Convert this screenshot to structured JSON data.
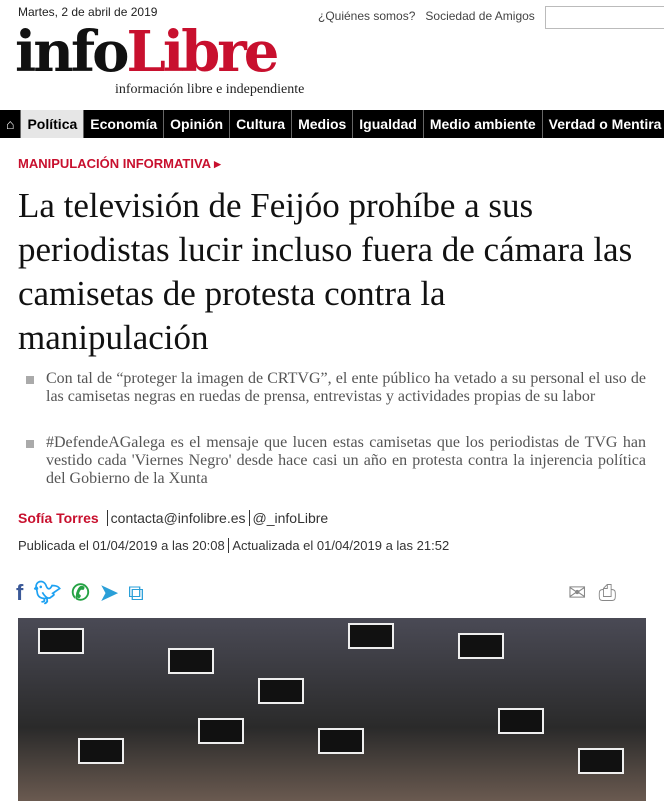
{
  "header": {
    "date": "Martes, 2 de abril de 2019",
    "links": [
      "¿Quiénes somos?",
      "Sociedad de Amigos"
    ],
    "logo": {
      "info": "info",
      "libre": "Libre"
    },
    "tagline": "información libre e independiente"
  },
  "nav": {
    "items": [
      "Política",
      "Economía",
      "Opinión",
      "Cultura",
      "Medios",
      "Igualdad",
      "Medio ambiente",
      "Verdad o Mentira"
    ],
    "active": "Política"
  },
  "article": {
    "kicker": "MANIPULACIÓN INFORMATIVA ▸",
    "title": "La televisión de Feijóo prohíbe a sus periodistas lucir incluso fuera de cámara las camisetas de protesta contra la manipulación",
    "bullets": [
      "Con tal de “proteger la imagen de CRTVG”, el ente público ha vetado a su personal el uso de las camisetas negras en ruedas de prensa, entrevistas y actividades propias de su labor",
      "#DefendeAGalega es el mensaje que lucen estas camisetas que los periodistas de TVG han vestido cada 'Viernes Negro' desde hace casi un año en protesta contra la injerencia política del Gobierno de la Xunta"
    ],
    "author": "Sofía Torres",
    "email": "contacta@infolibre.es",
    "twitter": "@_infoLibre",
    "published": "Publicada el 01/04/2019 a las 20:08",
    "updated": "Actualizada el 01/04/2019 a las 21:52"
  },
  "colors": {
    "brand": "#c8102e",
    "facebook": "#3b5998",
    "twitter": "#1da1f2",
    "whatsapp": "#25a244",
    "telegram": "#2a9fd8"
  }
}
